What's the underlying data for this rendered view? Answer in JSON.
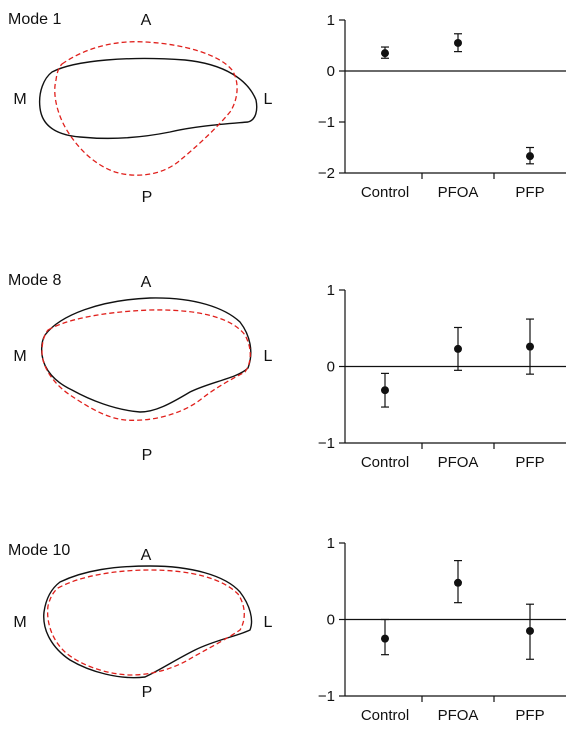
{
  "chart_data": [
    {
      "type": "scatter",
      "title": "",
      "xlabel": "",
      "ylabel": "",
      "categories": [
        "Control",
        "PFOA",
        "PFP"
      ],
      "ylim": [
        -2,
        1
      ],
      "yticks": [
        1,
        0,
        -1,
        -2
      ],
      "ytick_labels": [
        "1",
        "0",
        "−1",
        "−2"
      ],
      "zero_line": true,
      "error_bars": true,
      "values": [
        0.35,
        0.55,
        -1.67
      ],
      "error_low": [
        0.25,
        0.38,
        -1.82
      ],
      "error_high": [
        0.47,
        0.73,
        -1.5
      ]
    },
    {
      "type": "scatter",
      "title": "",
      "xlabel": "",
      "ylabel": "",
      "categories": [
        "Control",
        "PFOA",
        "PFP"
      ],
      "ylim": [
        -1,
        1
      ],
      "yticks": [
        1,
        0,
        -1
      ],
      "ytick_labels": [
        "1",
        "0",
        "−1"
      ],
      "zero_line": true,
      "error_bars": true,
      "values": [
        -0.31,
        0.23,
        0.26
      ],
      "error_low": [
        -0.53,
        -0.05,
        -0.1
      ],
      "error_high": [
        -0.09,
        0.51,
        0.62
      ]
    },
    {
      "type": "scatter",
      "title": "",
      "xlabel": "",
      "ylabel": "",
      "categories": [
        "Control",
        "PFOA",
        "PFP"
      ],
      "ylim": [
        -1,
        1
      ],
      "yticks": [
        1,
        0,
        -1
      ],
      "ytick_labels": [
        "1",
        "0",
        "−1"
      ],
      "zero_line": true,
      "error_bars": true,
      "values": [
        -0.25,
        0.48,
        -0.15
      ],
      "error_low": [
        -0.46,
        0.22,
        -0.52
      ],
      "error_high": [
        0.0,
        0.77,
        0.2
      ]
    }
  ],
  "shapes": [
    {
      "mode_label": "Mode 1",
      "anterior": "A",
      "posterior": "P",
      "medial": "M",
      "lateral": "L"
    },
    {
      "mode_label": "Mode 8",
      "anterior": "A",
      "posterior": "P",
      "medial": "M",
      "lateral": "L"
    },
    {
      "mode_label": "Mode 10",
      "anterior": "A",
      "posterior": "P",
      "medial": "M",
      "lateral": "L"
    }
  ],
  "colors": {
    "solid_outline": "#111111",
    "dashed_outline": "#e0201c",
    "axis": "#111111",
    "points": "#111111"
  }
}
